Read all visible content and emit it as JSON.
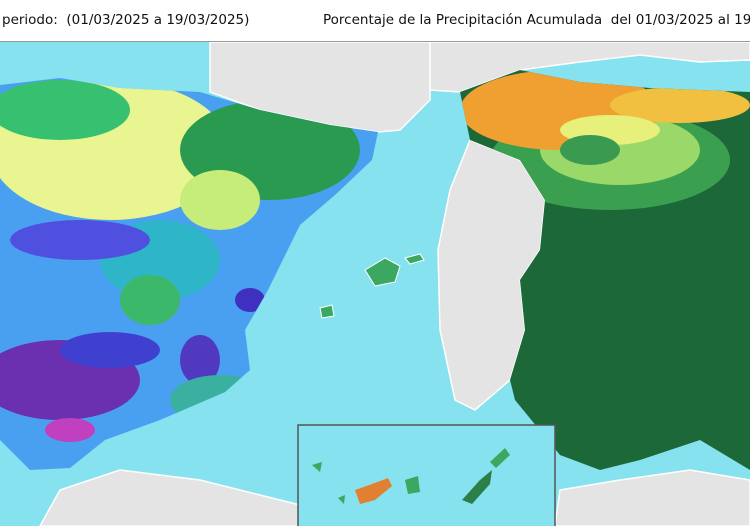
{
  "header": {
    "left_text": "periodo:  (01/03/2025 a 19/03/2025)",
    "right_text": "Porcentaje de la Precipitación Acumulada  del 01/03/2025 al 19"
  }
}
